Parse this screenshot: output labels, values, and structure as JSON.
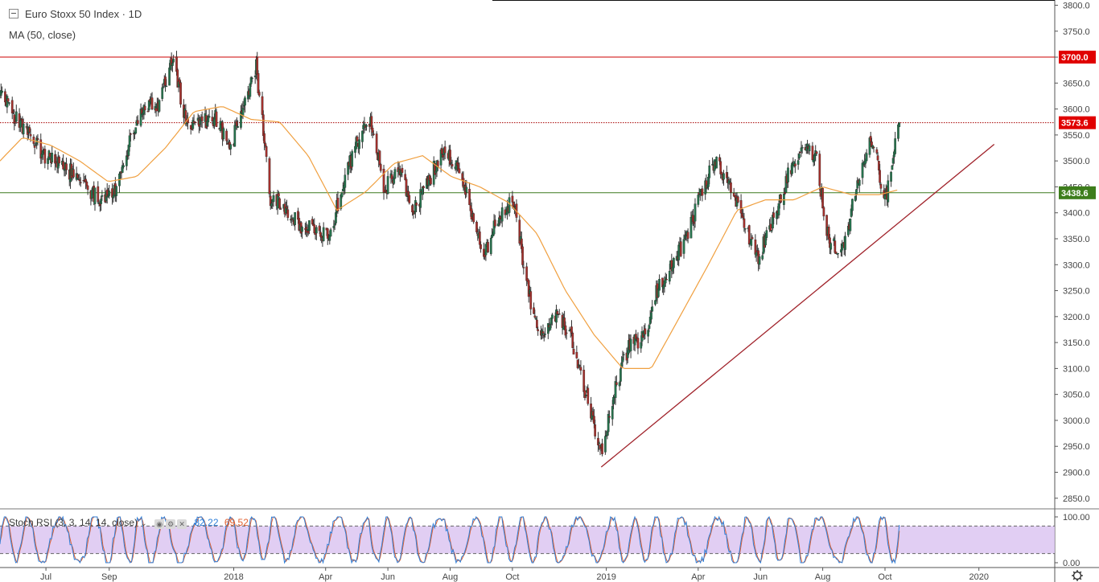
{
  "legend": {
    "symbol_title": "Euro Stoxx 50 Index · 1D",
    "ma_label": "MA (50, close)",
    "stoch_label": "Stoch RSI (3, 3, 14, 14, close)",
    "stoch_k_value": "82.22",
    "stoch_d_value": "69.52"
  },
  "price_axis_labels": [
    "3800.0",
    "3750.0",
    "3700.0",
    "3650.0",
    "3600.0",
    "3550.0",
    "3500.0",
    "3450.0",
    "3400.0",
    "3350.0",
    "3300.0",
    "3250.0",
    "3200.0",
    "3150.0",
    "3100.0",
    "3050.0",
    "3000.0",
    "2950.0",
    "2900.0",
    "2850.0"
  ],
  "stoch_axis_labels": [
    "100.00",
    "0.00"
  ],
  "time_axis_labels": [
    "Jul",
    "Sep",
    "2018",
    "Apr",
    "Jun",
    "Aug",
    "Oct",
    "2019",
    "Apr",
    "Jun",
    "Aug",
    "Oct",
    "2020"
  ],
  "colors": {
    "up_candle": "#26734d",
    "down_candle": "#a3302c",
    "wick": "#333333",
    "ma_line": "#f0a040",
    "resistance_line": "#cc0000",
    "dotted_line": "#a80000",
    "support_line": "#3b7a1f",
    "trend_line": "#a0222a",
    "stoch_k": "#2f7fd8",
    "stoch_d": "#e06030",
    "stoch_band": "#d9c2f0"
  },
  "chart_data": [
    {
      "type": "line",
      "title": "Euro Stoxx 50 Index · 1D",
      "x_range": [
        "2017-05-17",
        "2020-02-12"
      ],
      "ylim": [
        2825,
        3810
      ],
      "x_tick_labels": [
        "Jul",
        "Sep",
        "2018",
        "Apr",
        "Jun",
        "Aug",
        "Oct",
        "2019",
        "Apr",
        "Jun",
        "Aug",
        "Oct",
        "2020"
      ],
      "y_tick_labels": [
        "3800.0",
        "3750.0",
        "3700.0",
        "3650.0",
        "3600.0",
        "3550.0",
        "3500.0",
        "3450.0",
        "3400.0",
        "3350.0",
        "3300.0",
        "3250.0",
        "3200.0",
        "3150.0",
        "3100.0",
        "3050.0",
        "3000.0",
        "2950.0",
        "2900.0",
        "2850.0"
      ],
      "price_path": {
        "name": "Euro Stoxx 50 Index",
        "points": [
          [
            "2017-05-17",
            3635
          ],
          [
            "2017-06-01",
            3585
          ],
          [
            "2017-06-15",
            3555
          ],
          [
            "2017-06-29",
            3510
          ],
          [
            "2017-07-13",
            3500
          ],
          [
            "2017-07-27",
            3475
          ],
          [
            "2017-08-10",
            3450
          ],
          [
            "2017-08-24",
            3420
          ],
          [
            "2017-09-07",
            3440
          ],
          [
            "2017-09-21",
            3535
          ],
          [
            "2017-10-05",
            3600
          ],
          [
            "2017-10-19",
            3610
          ],
          [
            "2017-11-02",
            3695
          ],
          [
            "2017-11-16",
            3570
          ],
          [
            "2017-11-30",
            3575
          ],
          [
            "2017-12-14",
            3585
          ],
          [
            "2017-12-28",
            3520
          ],
          [
            "2018-01-11",
            3615
          ],
          [
            "2018-01-23",
            3680
          ],
          [
            "2018-02-06",
            3430
          ],
          [
            "2018-02-20",
            3410
          ],
          [
            "2018-03-06",
            3375
          ],
          [
            "2018-03-20",
            3370
          ],
          [
            "2018-04-03",
            3350
          ],
          [
            "2018-04-17",
            3440
          ],
          [
            "2018-05-01",
            3535
          ],
          [
            "2018-05-15",
            3575
          ],
          [
            "2018-05-29",
            3445
          ],
          [
            "2018-06-12",
            3490
          ],
          [
            "2018-06-26",
            3400
          ],
          [
            "2018-07-10",
            3460
          ],
          [
            "2018-07-24",
            3515
          ],
          [
            "2018-08-07",
            3500
          ],
          [
            "2018-08-21",
            3410
          ],
          [
            "2018-09-04",
            3320
          ],
          [
            "2018-09-18",
            3395
          ],
          [
            "2018-10-02",
            3425
          ],
          [
            "2018-10-16",
            3250
          ],
          [
            "2018-10-30",
            3160
          ],
          [
            "2018-11-13",
            3200
          ],
          [
            "2018-11-27",
            3165
          ],
          [
            "2018-12-11",
            3060
          ],
          [
            "2018-12-27",
            2940
          ],
          [
            "2019-01-10",
            3060
          ],
          [
            "2019-01-24",
            3150
          ],
          [
            "2019-02-07",
            3160
          ],
          [
            "2019-02-21",
            3260
          ],
          [
            "2019-03-07",
            3300
          ],
          [
            "2019-03-21",
            3350
          ],
          [
            "2019-04-04",
            3440
          ],
          [
            "2019-04-18",
            3500
          ],
          [
            "2019-05-02",
            3450
          ],
          [
            "2019-05-16",
            3380
          ],
          [
            "2019-05-30",
            3310
          ],
          [
            "2019-06-13",
            3385
          ],
          [
            "2019-06-27",
            3465
          ],
          [
            "2019-07-11",
            3530
          ],
          [
            "2019-07-25",
            3510
          ],
          [
            "2019-08-08",
            3335
          ],
          [
            "2019-08-22",
            3330
          ],
          [
            "2019-09-05",
            3470
          ],
          [
            "2019-09-19",
            3545
          ],
          [
            "2019-10-01",
            3420
          ],
          [
            "2019-10-15",
            3574
          ]
        ]
      },
      "series": [
        {
          "name": "MA (50, close)",
          "points": [
            [
              "2017-05-17",
              3500
            ],
            [
              "2017-06-08",
              3545
            ],
            [
              "2017-07-06",
              3530
            ],
            [
              "2017-08-03",
              3500
            ],
            [
              "2017-08-31",
              3460
            ],
            [
              "2017-09-28",
              3470
            ],
            [
              "2017-10-26",
              3525
            ],
            [
              "2017-11-23",
              3595
            ],
            [
              "2017-12-21",
              3605
            ],
            [
              "2018-01-18",
              3580
            ],
            [
              "2018-02-15",
              3575
            ],
            [
              "2018-03-15",
              3510
            ],
            [
              "2018-04-12",
              3405
            ],
            [
              "2018-05-10",
              3440
            ],
            [
              "2018-06-07",
              3495
            ],
            [
              "2018-07-05",
              3510
            ],
            [
              "2018-08-02",
              3470
            ],
            [
              "2018-08-30",
              3450
            ],
            [
              "2018-09-27",
              3420
            ],
            [
              "2018-10-25",
              3360
            ],
            [
              "2018-11-22",
              3250
            ],
            [
              "2018-12-20",
              3165
            ],
            [
              "2019-01-17",
              3100
            ],
            [
              "2019-02-14",
              3100
            ],
            [
              "2019-03-14",
              3200
            ],
            [
              "2019-04-11",
              3300
            ],
            [
              "2019-05-09",
              3405
            ],
            [
              "2019-06-06",
              3425
            ],
            [
              "2019-07-04",
              3425
            ],
            [
              "2019-08-01",
              3450
            ],
            [
              "2019-08-29",
              3435
            ],
            [
              "2019-09-26",
              3435
            ],
            [
              "2019-10-15",
              3445
            ]
          ]
        }
      ],
      "horizontal_levels": [
        {
          "value": 3700.0,
          "label": "3700.0",
          "style": "solid"
        },
        {
          "value": 3573.6,
          "label": "3573.6",
          "style": "dotted"
        },
        {
          "value": 3438.6,
          "label": "3438.6",
          "style": "solid"
        }
      ],
      "trend_line": {
        "from": [
          "2018-12-27",
          2910
        ],
        "to": [
          "2020-01-16",
          3532
        ]
      },
      "grid": false
    },
    {
      "type": "line",
      "title": "Stoch RSI (3, 3, 14, 14, close)",
      "ylim": [
        0,
        100
      ],
      "y_tick_labels": [
        "100.00",
        "0.00"
      ],
      "bands": [
        80,
        20
      ],
      "last_values": {
        "k": 82.22,
        "d": 69.52
      }
    }
  ]
}
